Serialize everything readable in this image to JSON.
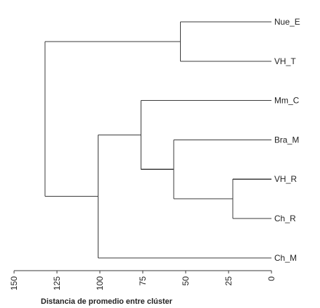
{
  "diagram": {
    "type": "dendrogram",
    "orientation": "horizontal",
    "leaves": [
      "Nue_E",
      "VH_T",
      "Mm_C",
      "Bra_M",
      "VH_R",
      "Ch_R",
      "Ch_M"
    ],
    "merges": [
      {
        "id": "m1",
        "children": [
          "VH_R",
          "Ch_R"
        ],
        "height": 22.5
      },
      {
        "id": "m2",
        "children": [
          "Nue_E",
          "VH_T"
        ],
        "height": 53
      },
      {
        "id": "m3",
        "children": [
          "Bra_M",
          "m1"
        ],
        "height": 57
      },
      {
        "id": "m4",
        "children": [
          "Mm_C",
          "m3"
        ],
        "height": 76
      },
      {
        "id": "m5",
        "children": [
          "m4",
          "Ch_M"
        ],
        "height": 101
      },
      {
        "id": "m6",
        "children": [
          "m2",
          "m5"
        ],
        "height": 132
      }
    ],
    "x_axis": {
      "title": "Distancia de promedio entre clúster",
      "range": [
        150,
        0
      ],
      "ticks": [
        "150",
        "125",
        "100",
        "75",
        "50",
        "25",
        "0"
      ]
    }
  }
}
